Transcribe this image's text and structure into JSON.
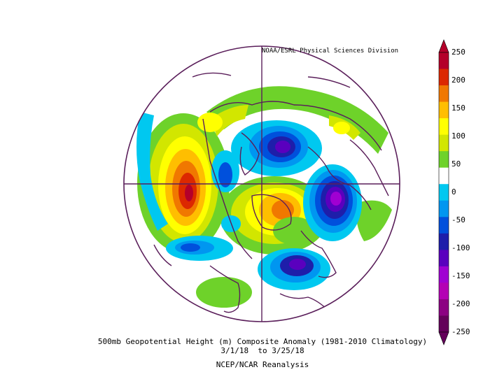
{
  "credit": "NOAA/ESRL Physical Sciences Division",
  "title": "500mb Geopotential Height (m) Composite Anomaly (1981-2010 Climatology)",
  "dates": "3/1/18  to 3/25/18",
  "source": "NCEP/NCAR Reanalysis",
  "colorbar": {
    "labels": [
      "250",
      "200",
      "150",
      "100",
      "50",
      "0",
      "-50",
      "-100",
      "-150",
      "-200",
      "-250"
    ],
    "colors": [
      "#b4002a",
      "#dc2800",
      "#f07800",
      "#ffbe00",
      "#ffff00",
      "#d2e600",
      "#6ed22a",
      "#ffffff",
      "#00c8f0",
      "#0096f0",
      "#0050dc",
      "#1e1eaa",
      "#5a00be",
      "#a000d2",
      "#b400b4",
      "#8c0082",
      "#64005a"
    ]
  }
}
